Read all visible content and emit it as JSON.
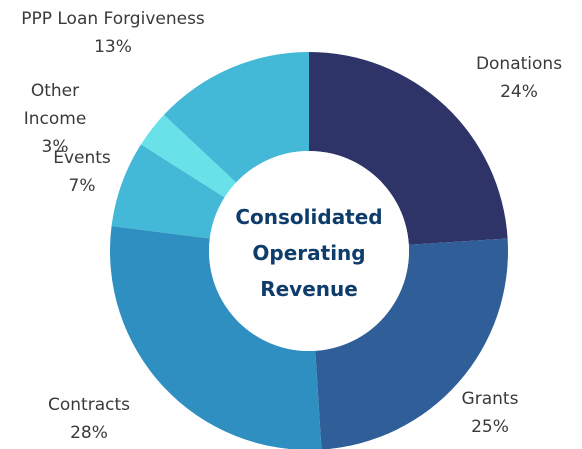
{
  "chart_data": {
    "type": "donut",
    "title": "Consolidated Operating Revenue",
    "categories": [
      "Donations",
      "Grants",
      "Contracts",
      "Events",
      "Other Income",
      "PPP Loan Forgiveness"
    ],
    "values": [
      24,
      25,
      28,
      7,
      3,
      13
    ],
    "value_labels": [
      "24%",
      "25%",
      "28%",
      "7%",
      "3%",
      "13%"
    ],
    "colors": [
      "#2f3468",
      "#2f5e98",
      "#2f8fc1",
      "#43b8d7",
      "#68e1e9",
      "#43b8d7"
    ]
  }
}
